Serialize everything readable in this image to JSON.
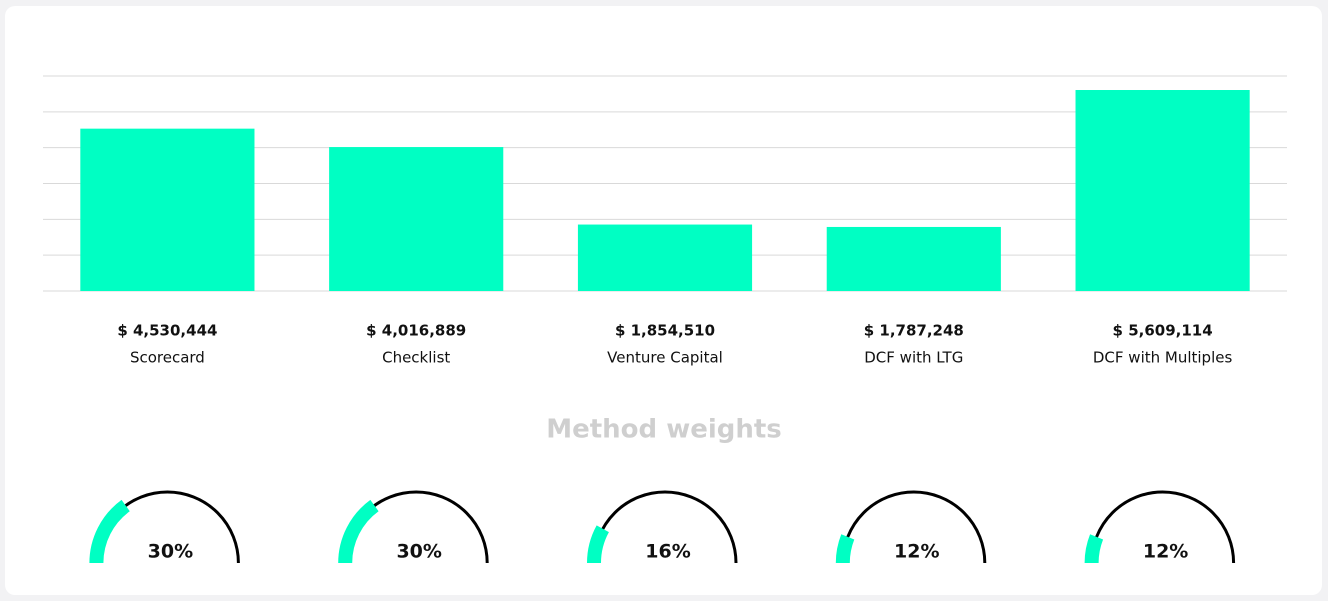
{
  "chart_data": [
    {
      "type": "bar",
      "categories": [
        "Scorecard",
        "Checklist",
        "Venture Capital",
        "DCF with LTG",
        "DCF with Multiples"
      ],
      "values": [
        4530444,
        4016889,
        1854510,
        1787248,
        5609114
      ],
      "value_labels": [
        "$ 4,530,444",
        "$ 4,016,889",
        "$ 1,854,510",
        "$ 1,787,248",
        "$ 5,609,114"
      ],
      "color": "#00ffc3",
      "ylim": [
        0,
        6000000
      ],
      "yticks": [
        0,
        1000000,
        2000000,
        3000000,
        4000000,
        5000000,
        6000000
      ],
      "grid": true
    },
    {
      "type": "gauge",
      "title": "Method weights",
      "values": [
        30,
        30,
        16,
        12,
        12
      ],
      "value_labels": [
        "30%",
        "30%",
        "16%",
        "12%",
        "12%"
      ],
      "color": "#00ffc3",
      "ylim": [
        0,
        100
      ]
    }
  ]
}
